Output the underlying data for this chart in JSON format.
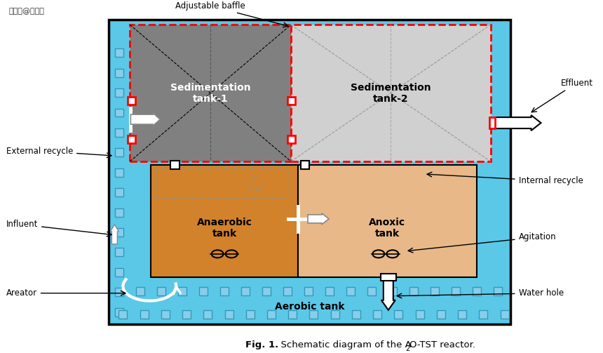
{
  "fig_width": 8.6,
  "fig_height": 5.03,
  "dpi": 100,
  "bg_color": "#ffffff",
  "cyan_bg": "#5BC8E8",
  "sed1_color": "#808080",
  "sed2_color": "#D0D0D0",
  "anaerobic_color": "#D2822A",
  "anoxic_color": "#E8B888",
  "red_dashed": "#FF0000",
  "watermark": "搜狐号@奥维森",
  "labels": {
    "adjustable_baffle": "Adjustable baffle",
    "effluent": "Effluent",
    "external_recycle": "External recycle",
    "internal_recycle": "Internal recycle",
    "influent": "Influent",
    "agitation": "Agitation",
    "areator": "Areator",
    "water_hole": "Water hole",
    "sed1": "Sedimentation\ntank-1",
    "sed2": "Sedimentation\ntank-2",
    "anaerobic": "Anaerobic\ntank",
    "anoxic": "Anoxic\ntank",
    "aerobic": "Aerobic tank"
  }
}
